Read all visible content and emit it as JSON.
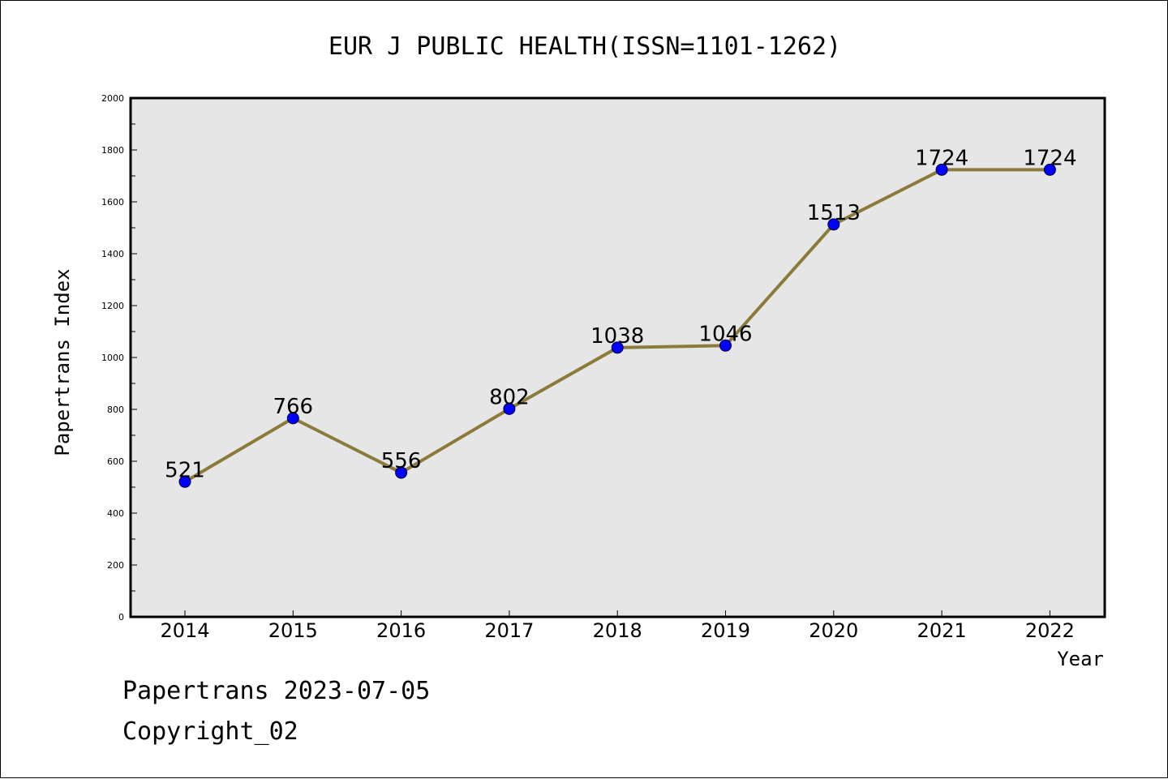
{
  "chart_data": {
    "type": "line",
    "title": "EUR J PUBLIC HEALTH(ISSN=1101-1262)",
    "xlabel": "Year",
    "ylabel": "Papertrans Index",
    "categories": [
      "2014",
      "2015",
      "2016",
      "2017",
      "2018",
      "2019",
      "2020",
      "2021",
      "2022"
    ],
    "series": [
      {
        "values": [
          521,
          766,
          556,
          802,
          1038,
          1046,
          1513,
          1724,
          1724
        ]
      }
    ],
    "data_labels": [
      "521",
      "766",
      "556",
      "802",
      "1038",
      "1046",
      "1513",
      "1724",
      "1724"
    ],
    "ylim": [
      0,
      2000
    ],
    "yticks": [
      "0",
      "200",
      "400",
      "600",
      "800",
      "1000",
      "1200",
      "1400",
      "1600",
      "1800",
      "2000"
    ],
    "grid": false,
    "colors": {
      "line": "#8b7a3a",
      "marker": "#0000ff",
      "plot_background": "#e6e6e6"
    }
  },
  "footer": {
    "date_line": "Papertrans 2023-07-05",
    "copyright": "Copyright_02"
  }
}
